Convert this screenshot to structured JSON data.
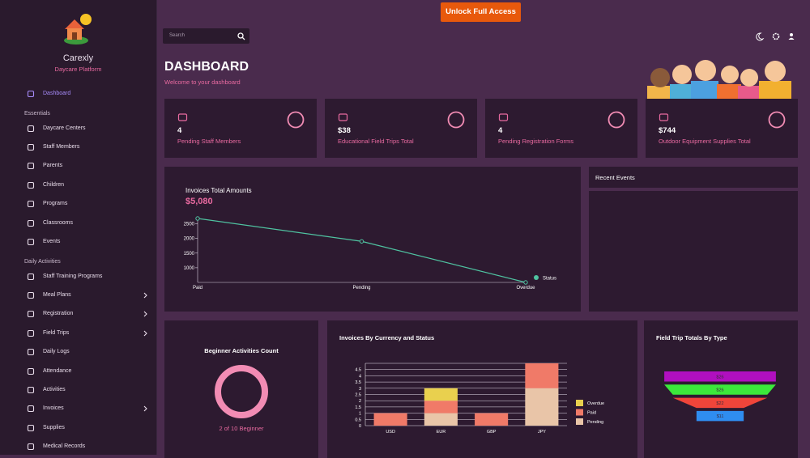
{
  "banner": {
    "button": "Unlock Full Access"
  },
  "sidebar": {
    "brand": "Carexly",
    "tagline": "Daycare Platform",
    "top": [
      {
        "label": "Dashboard",
        "active": true
      }
    ],
    "sections": [
      {
        "title": "Essentials",
        "items": [
          {
            "label": "Daycare Centers"
          },
          {
            "label": "Staff Members"
          },
          {
            "label": "Parents"
          },
          {
            "label": "Children"
          },
          {
            "label": "Programs"
          },
          {
            "label": "Classrooms"
          },
          {
            "label": "Events"
          }
        ]
      },
      {
        "title": "Daily Activities",
        "items": [
          {
            "label": "Staff Training Programs"
          },
          {
            "label": "Meal Plans",
            "submenu": true
          },
          {
            "label": "Registration",
            "submenu": true
          },
          {
            "label": "Field Trips",
            "submenu": true
          },
          {
            "label": "Daily Logs"
          },
          {
            "label": "Attendance"
          },
          {
            "label": "Activities"
          },
          {
            "label": "Invoices",
            "submenu": true
          },
          {
            "label": "Supplies"
          },
          {
            "label": "Medical Records"
          }
        ]
      }
    ]
  },
  "search": {
    "placeholder": "Search"
  },
  "header": {
    "title": "DASHBOARD",
    "subtitle": "Welcome to your dashboard"
  },
  "stats": [
    {
      "value": "4",
      "label": "Pending Staff Members"
    },
    {
      "value": "$38",
      "label": "Educational Field Trips Total"
    },
    {
      "value": "4",
      "label": "Pending Registration Forms"
    },
    {
      "value": "$744",
      "label": "Outdoor Equipment Supplies Total"
    }
  ],
  "recent_events": {
    "title": "Recent Events"
  },
  "beginner_card": {
    "title": "Beginner Activities Count",
    "caption": "2 of 10 Beginner"
  },
  "chart_data": [
    {
      "type": "line",
      "title": "Invoices Total Amounts",
      "subtitle": "$5,080",
      "categories": [
        "Paid",
        "Pending",
        "Overdue"
      ],
      "series": [
        {
          "name": "Status",
          "color": "#4fc3a1",
          "values": [
            2680,
            1900,
            500
          ]
        }
      ],
      "ylim": [
        500,
        2680
      ],
      "yticks": [
        1000,
        1500,
        2000,
        2500
      ]
    },
    {
      "type": "bar",
      "stacked": true,
      "title": "Invoices By Currency and Status",
      "categories": [
        "USD",
        "EUR",
        "GBP",
        "JPY"
      ],
      "series": [
        {
          "name": "Pending",
          "color": "#e9c5a8",
          "values": [
            0,
            1,
            0,
            3
          ]
        },
        {
          "name": "Paid",
          "color": "#f07a68",
          "values": [
            1,
            1,
            1,
            2
          ]
        },
        {
          "name": "Overdue",
          "color": "#e9d04e",
          "values": [
            0,
            1,
            0,
            0
          ]
        }
      ],
      "ylim": [
        0,
        5
      ],
      "yticks": [
        0,
        0.5,
        1,
        1.5,
        2,
        2.5,
        3,
        3.5,
        4,
        4.5
      ],
      "grid": true
    },
    {
      "type": "funnel",
      "title": "Field Trip Totals By Type",
      "values": [
        26,
        26,
        22,
        11
      ],
      "value_labels": [
        "$26",
        "$26",
        "$22",
        "$11"
      ],
      "colors": [
        "#b00fbf",
        "#3be83b",
        "#f0453a",
        "#2f8df0"
      ]
    }
  ]
}
